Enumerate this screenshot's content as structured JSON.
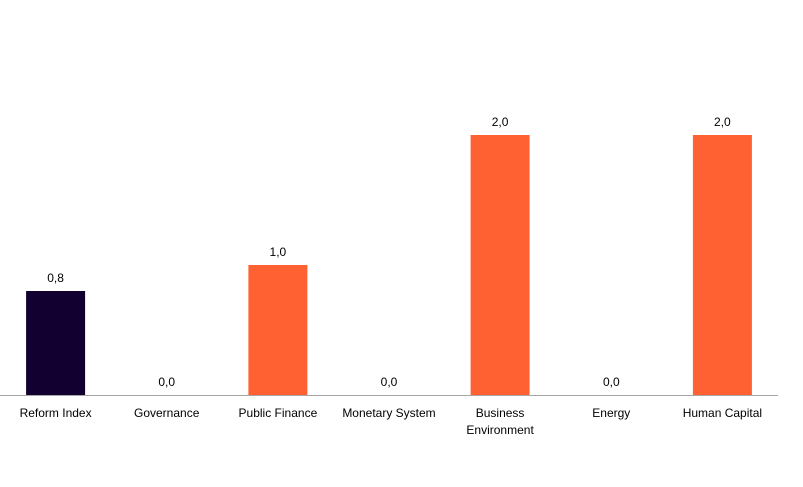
{
  "chart_data": {
    "type": "bar",
    "title": "",
    "xlabel": "",
    "ylabel": "",
    "categories": [
      "Reform Index",
      "Governance",
      "Public Finance",
      "Monetary System",
      "Business Environment",
      "Energy",
      "Human Capital"
    ],
    "category_lines": [
      [
        "Reform Index"
      ],
      [
        "Governance"
      ],
      [
        "Public Finance"
      ],
      [
        "Monetary System"
      ],
      [
        "Business",
        "Environment"
      ],
      [
        "Energy"
      ],
      [
        "Human Capital"
      ]
    ],
    "values": [
      0.8,
      0.0,
      1.0,
      0.0,
      2.0,
      0.0,
      2.0
    ],
    "value_labels": [
      "0,8",
      "0,0",
      "1,0",
      "0,0",
      "2,0",
      "0,0",
      "2,0"
    ],
    "colors": [
      "#120030",
      "#ff6133",
      "#ff6133",
      "#ff6133",
      "#ff6133",
      "#ff6133",
      "#ff6133"
    ],
    "axis_color": "#a6a6a6",
    "ylim": [
      0,
      2.0
    ],
    "grid": false,
    "legend": "none"
  }
}
